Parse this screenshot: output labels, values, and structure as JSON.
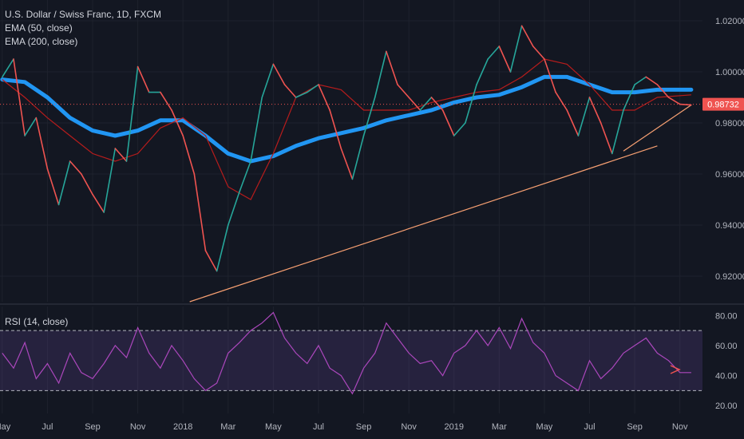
{
  "chart_data": {
    "type": "line",
    "title": "U.S. Dollar / Swiss Franc, 1D, FXCM",
    "indicators": [
      "EMA (50, close)",
      "EMA (200, close)"
    ],
    "rsi_label": "RSI (14, close)",
    "last_price_label": "0.98732",
    "last_price": 0.98732,
    "price_axis": {
      "ticks": [
        "1.02000",
        "1.00000",
        "0.98000",
        "0.96000",
        "0.94000",
        "0.92000"
      ],
      "tick_values": [
        1.02,
        1.0,
        0.98,
        0.96,
        0.94,
        0.92
      ],
      "ylim": [
        0.91,
        1.025
      ]
    },
    "rsi_axis": {
      "ticks": [
        "80.00",
        "60.00",
        "40.00",
        "20.00"
      ],
      "tick_values": [
        80,
        60,
        40,
        20
      ],
      "ylim": [
        18,
        86
      ],
      "bands": [
        70,
        30
      ]
    },
    "x_axis": {
      "ticks": [
        "May",
        "Jul",
        "Sep",
        "Nov",
        "2018",
        "Mar",
        "May",
        "Jul",
        "Sep",
        "Nov",
        "2019",
        "Mar",
        "May",
        "Jul",
        "Sep",
        "Nov"
      ],
      "tick_t": [
        0,
        2,
        4,
        6,
        8,
        10,
        12,
        14,
        16,
        18,
        20,
        22,
        24,
        26,
        28,
        30
      ],
      "t_unit": "months since May 2017"
    },
    "price_series": {
      "name": "USDCHF",
      "t": [
        0,
        0.5,
        1,
        1.5,
        2,
        2.5,
        3,
        3.5,
        4,
        4.5,
        5,
        5.5,
        6,
        6.5,
        7,
        7.5,
        8,
        8.5,
        9,
        9.5,
        10,
        10.5,
        11,
        11.5,
        12,
        12.5,
        13,
        13.5,
        14,
        14.5,
        15,
        15.5,
        16,
        16.5,
        17,
        17.5,
        18,
        18.5,
        19,
        19.5,
        20,
        20.5,
        21,
        21.5,
        22,
        22.5,
        23,
        23.5,
        24,
        24.5,
        25,
        25.5,
        26,
        26.5,
        27,
        27.5,
        28,
        28.5,
        29,
        29.5,
        30,
        30.5
      ],
      "close": [
        0.998,
        1.005,
        0.975,
        0.982,
        0.962,
        0.948,
        0.965,
        0.96,
        0.952,
        0.945,
        0.97,
        0.965,
        1.002,
        0.992,
        0.992,
        0.985,
        0.975,
        0.96,
        0.93,
        0.922,
        0.94,
        0.953,
        0.965,
        0.99,
        1.003,
        0.995,
        0.99,
        0.992,
        0.995,
        0.985,
        0.97,
        0.958,
        0.975,
        0.99,
        1.008,
        0.995,
        0.99,
        0.985,
        0.99,
        0.985,
        0.975,
        0.98,
        0.995,
        1.005,
        1.01,
        1.0,
        1.018,
        1.01,
        1.005,
        0.992,
        0.985,
        0.975,
        0.99,
        0.98,
        0.968,
        0.985,
        0.995,
        0.998,
        0.995,
        0.99,
        0.98732,
        0.987
      ]
    },
    "ema50": {
      "name": "EMA (50, close)",
      "t": [
        0,
        1,
        2,
        3,
        4,
        5,
        6,
        7,
        8,
        9,
        10,
        11,
        12,
        13,
        14,
        15,
        16,
        17,
        18,
        19,
        20,
        21,
        22,
        23,
        24,
        25,
        26,
        27,
        28,
        29,
        30.5
      ],
      "values": [
        0.997,
        0.99,
        0.982,
        0.975,
        0.968,
        0.965,
        0.968,
        0.978,
        0.982,
        0.975,
        0.955,
        0.95,
        0.968,
        0.99,
        0.995,
        0.993,
        0.985,
        0.985,
        0.985,
        0.988,
        0.99,
        0.992,
        0.993,
        0.998,
        1.005,
        1.003,
        0.995,
        0.985,
        0.985,
        0.99,
        0.991
      ]
    },
    "ema200": {
      "name": "EMA (200, close)",
      "t": [
        0,
        1,
        2,
        3,
        4,
        5,
        6,
        7,
        8,
        9,
        10,
        11,
        12,
        13,
        14,
        15,
        16,
        17,
        18,
        19,
        20,
        21,
        22,
        23,
        24,
        25,
        26,
        27,
        28,
        29,
        30.5
      ],
      "values": [
        0.997,
        0.996,
        0.99,
        0.982,
        0.977,
        0.975,
        0.977,
        0.981,
        0.981,
        0.975,
        0.968,
        0.965,
        0.967,
        0.971,
        0.974,
        0.976,
        0.978,
        0.981,
        0.983,
        0.985,
        0.988,
        0.99,
        0.991,
        0.994,
        0.998,
        0.998,
        0.995,
        0.992,
        0.992,
        0.993,
        0.993
      ]
    },
    "trendlines": [
      {
        "t": [
          8.3,
          29
        ],
        "values": [
          0.91,
          0.971
        ]
      },
      {
        "t": [
          27.5,
          30.5
        ],
        "values": [
          0.969,
          0.987
        ]
      }
    ],
    "rsi": {
      "name": "RSI (14, close)",
      "t": [
        0,
        0.5,
        1,
        1.5,
        2,
        2.5,
        3,
        3.5,
        4,
        4.5,
        5,
        5.5,
        6,
        6.5,
        7,
        7.5,
        8,
        8.5,
        9,
        9.5,
        10,
        10.5,
        11,
        11.5,
        12,
        12.5,
        13,
        13.5,
        14,
        14.5,
        15,
        15.5,
        16,
        16.5,
        17,
        17.5,
        18,
        18.5,
        19,
        19.5,
        20,
        20.5,
        21,
        21.5,
        22,
        22.5,
        23,
        23.5,
        24,
        24.5,
        25,
        25.5,
        26,
        26.5,
        27,
        27.5,
        28,
        28.5,
        29,
        29.5,
        30,
        30.5
      ],
      "values": [
        55,
        45,
        62,
        38,
        48,
        35,
        55,
        42,
        38,
        48,
        60,
        52,
        72,
        55,
        45,
        60,
        50,
        38,
        30,
        35,
        55,
        62,
        70,
        75,
        82,
        65,
        55,
        48,
        60,
        45,
        40,
        28,
        45,
        55,
        75,
        65,
        55,
        48,
        50,
        40,
        55,
        60,
        70,
        60,
        72,
        58,
        78,
        62,
        55,
        40,
        35,
        30,
        50,
        38,
        45,
        55,
        60,
        65,
        55,
        50,
        42,
        42
      ]
    }
  }
}
